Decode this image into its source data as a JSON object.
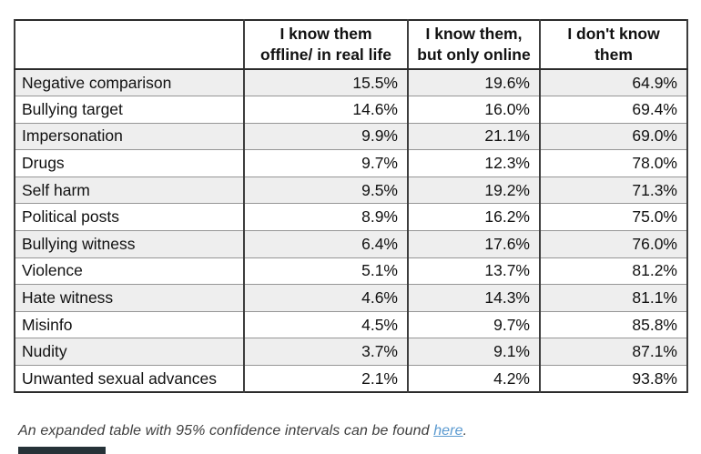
{
  "table": {
    "corner_label": "",
    "columns": [
      {
        "lines": [
          "I know them",
          "offline/ in real life"
        ]
      },
      {
        "lines": [
          "I know them,",
          "but only online"
        ]
      },
      {
        "lines": [
          "I don't know",
          "them"
        ]
      }
    ],
    "rows": [
      {
        "label": "Negative comparison",
        "values": [
          "15.5%",
          "19.6%",
          "64.9%"
        ]
      },
      {
        "label": "Bullying target",
        "values": [
          "14.6%",
          "16.0%",
          "69.4%"
        ]
      },
      {
        "label": "Impersonation",
        "values": [
          "9.9%",
          "21.1%",
          "69.0%"
        ]
      },
      {
        "label": "Drugs",
        "values": [
          "9.7%",
          "12.3%",
          "78.0%"
        ]
      },
      {
        "label": "Self harm",
        "values": [
          "9.5%",
          "19.2%",
          "71.3%"
        ]
      },
      {
        "label": "Political posts",
        "values": [
          "8.9%",
          "16.2%",
          "75.0%"
        ]
      },
      {
        "label": "Bullying witness",
        "values": [
          "6.4%",
          "17.6%",
          "76.0%"
        ]
      },
      {
        "label": "Violence",
        "values": [
          "5.1%",
          "13.7%",
          "81.2%"
        ]
      },
      {
        "label": "Hate witness",
        "values": [
          "4.6%",
          "14.3%",
          "81.1%"
        ]
      },
      {
        "label": "Misinfo",
        "values": [
          "4.5%",
          "9.7%",
          "85.8%"
        ]
      },
      {
        "label": "Nudity",
        "values": [
          "3.7%",
          "9.1%",
          "87.1%"
        ]
      },
      {
        "label": "Unwanted sexual advances",
        "values": [
          "2.1%",
          "4.2%",
          "93.8%"
        ]
      }
    ]
  },
  "caption": {
    "text_before": "An expanded table with 95% confidence intervals can be found ",
    "link_text": "here",
    "text_after": "."
  },
  "colors": {
    "link_blue": "#5b9ad0",
    "alt_row_gray": "#eeeeee",
    "border_dark": "#2b2b2b",
    "border_light": "#969696",
    "text": "#111111",
    "partial_bar": "#263238"
  },
  "chart_data": {
    "type": "table",
    "columns": [
      "",
      "I know them offline/ in real life",
      "I know them, but only online",
      "I don't know them"
    ],
    "units": "percent",
    "rows": [
      [
        "Negative comparison",
        15.5,
        19.6,
        64.9
      ],
      [
        "Bullying target",
        14.6,
        16.0,
        69.4
      ],
      [
        "Impersonation",
        9.9,
        21.1,
        69.0
      ],
      [
        "Drugs",
        9.7,
        12.3,
        78.0
      ],
      [
        "Self harm",
        9.5,
        19.2,
        71.3
      ],
      [
        "Political posts",
        8.9,
        16.2,
        75.0
      ],
      [
        "Bullying witness",
        6.4,
        17.6,
        76.0
      ],
      [
        "Violence",
        5.1,
        13.7,
        81.2
      ],
      [
        "Hate witness",
        4.6,
        14.3,
        81.1
      ],
      [
        "Misinfo",
        4.5,
        9.7,
        85.8
      ],
      [
        "Nudity",
        3.7,
        9.1,
        87.1
      ],
      [
        "Unwanted sexual advances",
        2.1,
        4.2,
        93.8
      ]
    ],
    "caption": "An expanded table with 95% confidence intervals can be found here.",
    "legend_position": "none",
    "grid": true
  }
}
